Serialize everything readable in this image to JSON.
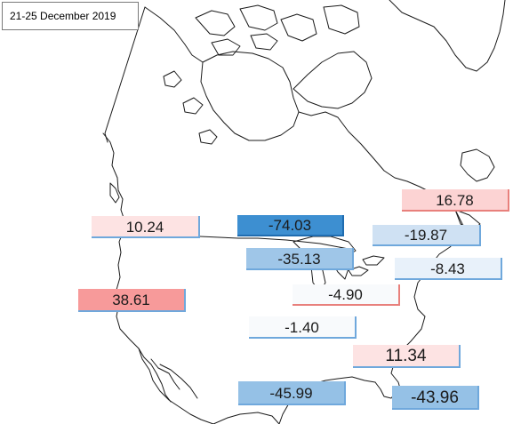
{
  "title": "21-25  December 2019",
  "colors": {
    "strong_blue": "#3d8fd1",
    "mid_blue": "#95c1e6",
    "light_blue": "#cfe1f3",
    "pale_blue": "#e8f1fa",
    "very_pale": "#f8fafc",
    "pale_pink": "#fde3e3",
    "pink": "#fcd3d3",
    "salmon": "#f79a9a",
    "border_blue": "#6fa8dc",
    "border_red": "#e8807c",
    "coast": "#1a1a1a"
  },
  "stations": [
    {
      "value": "-74.03",
      "fill": "#3d8fd1",
      "edge": "#1f6cb0"
    },
    {
      "value": "16.78",
      "fill": "#fcd3d3",
      "edge": "#e8807c"
    },
    {
      "value": "10.24",
      "fill": "#fde3e3",
      "edge": "#6fa8dc"
    },
    {
      "value": "-19.87",
      "fill": "#cfe1f3",
      "edge": "#6fa8dc"
    },
    {
      "value": "-35.13",
      "fill": "#9fc6e8",
      "edge": "#6fa8dc"
    },
    {
      "value": "-8.43",
      "fill": "#e8f1fa",
      "edge": "#6fa8dc"
    },
    {
      "value": "38.61",
      "fill": "#f79a9a",
      "edge": "#6fa8dc"
    },
    {
      "value": "-4.90",
      "fill": "#f8fafc",
      "edge": "#e8807c"
    },
    {
      "value": "-1.40",
      "fill": "#f8fafc",
      "edge": "#6fa8dc"
    },
    {
      "value": "11.34",
      "fill": "#fde3e3",
      "edge": "#6fa8dc"
    },
    {
      "value": "-45.99",
      "fill": "#95c1e6",
      "edge": "#6fa8dc"
    },
    {
      "value": "-43.96",
      "fill": "#95c1e6",
      "edge": "#6fa8dc"
    }
  ]
}
